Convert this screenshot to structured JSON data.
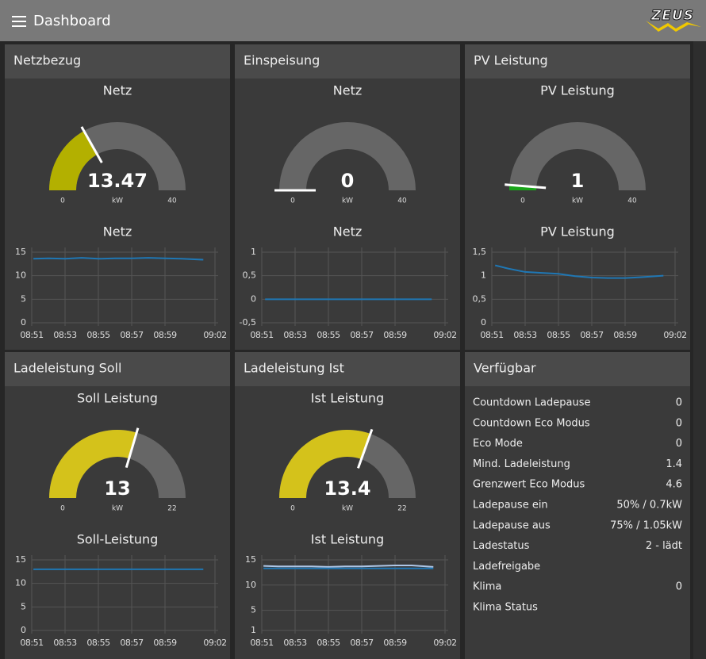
{
  "header": {
    "title": "Dashboard",
    "logo": "ZEUS"
  },
  "panels": [
    {
      "title": "Netzbezug",
      "gauge": {
        "label": "Netz",
        "value": 13.47,
        "unit": "kW",
        "min": 0,
        "max": 40,
        "color": "#b3b000"
      },
      "chart": {
        "label": "Netz",
        "ylim": [
          0,
          15
        ],
        "yticks": [
          0,
          5,
          10,
          15
        ],
        "xlim": [
          531,
          542
        ],
        "xticks": [
          {
            "value": 531,
            "label": "08:51"
          },
          {
            "value": 533,
            "label": "08:53"
          },
          {
            "value": 535,
            "label": "08:55"
          },
          {
            "value": 537,
            "label": "08:57"
          },
          {
            "value": 539,
            "label": "08:59"
          },
          {
            "value": 542,
            "label": "09:02"
          }
        ],
        "series": [
          {
            "color": "#1f77b4",
            "x": [
              531.1,
              532,
              533,
              534,
              535,
              536,
              537,
              538,
              539,
              540,
              541.3
            ],
            "values": [
              13.6,
              13.7,
              13.6,
              13.8,
              13.6,
              13.7,
              13.7,
              13.8,
              13.7,
              13.6,
              13.4
            ]
          }
        ]
      }
    },
    {
      "title": "Einspeisung",
      "gauge": {
        "label": "Netz",
        "value": 0,
        "unit": "kW",
        "min": 0,
        "max": 40,
        "color": "#b3b000"
      },
      "chart": {
        "label": "Netz",
        "ylim": [
          -0.5,
          1
        ],
        "yticks": [
          {
            "value": -0.5,
            "label": "-0,5"
          },
          0,
          {
            "value": 0.5,
            "label": "0,5"
          },
          1
        ],
        "xlim": [
          531,
          542
        ],
        "xticks": [
          {
            "value": 531,
            "label": "08:51"
          },
          {
            "value": 533,
            "label": "08:53"
          },
          {
            "value": 535,
            "label": "08:55"
          },
          {
            "value": 537,
            "label": "08:57"
          },
          {
            "value": 539,
            "label": "08:59"
          },
          {
            "value": 542,
            "label": "09:02"
          }
        ],
        "series": [
          {
            "color": "#1f77b4",
            "x": [
              531.2,
              536,
              541.2
            ],
            "values": [
              0,
              0,
              0
            ]
          }
        ]
      }
    },
    {
      "title": "PV Leistung",
      "gauge": {
        "label": "PV Leistung",
        "value": 1,
        "unit": "kW",
        "min": 0,
        "max": 40,
        "color": "#1aa51a"
      },
      "chart": {
        "label": "PV Leistung",
        "ylim": [
          0,
          1.5
        ],
        "yticks": [
          0,
          {
            "value": 0.5,
            "label": "0,5"
          },
          1,
          {
            "value": 1.5,
            "label": "1,5"
          }
        ],
        "xlim": [
          531,
          542
        ],
        "xticks": [
          {
            "value": 531,
            "label": "08:51"
          },
          {
            "value": 533,
            "label": "08:53"
          },
          {
            "value": 535,
            "label": "08:55"
          },
          {
            "value": 537,
            "label": "08:57"
          },
          {
            "value": 539,
            "label": "08:59"
          },
          {
            "value": 542,
            "label": "09:02"
          }
        ],
        "series": [
          {
            "color": "#1f77b4",
            "x": [
              531.2,
              532,
              533,
              534,
              535,
              536,
              537,
              538,
              539,
              540,
              541.3
            ],
            "values": [
              1.22,
              1.15,
              1.08,
              1.06,
              1.04,
              0.99,
              0.96,
              0.95,
              0.95,
              0.97,
              1.0
            ]
          }
        ]
      }
    },
    {
      "title": "Ladeleistung Soll",
      "gauge": {
        "label": "Soll Leistung",
        "value": 13,
        "unit": "kW",
        "min": 0,
        "max": 22,
        "color": "#d4c21b"
      },
      "chart": {
        "label": "Soll-Leistung",
        "ylim": [
          0,
          15
        ],
        "yticks": [
          0,
          5,
          10,
          15
        ],
        "xlim": [
          531,
          542
        ],
        "xticks": [
          {
            "value": 531,
            "label": "08:51"
          },
          {
            "value": 533,
            "label": "08:53"
          },
          {
            "value": 535,
            "label": "08:55"
          },
          {
            "value": 537,
            "label": "08:57"
          },
          {
            "value": 539,
            "label": "08:59"
          },
          {
            "value": 542,
            "label": "09:02"
          }
        ],
        "series": [
          {
            "color": "#1f77b4",
            "x": [
              531.1,
              541.3
            ],
            "values": [
              13,
              13
            ]
          }
        ]
      }
    },
    {
      "title": "Ladeleistung Ist",
      "gauge": {
        "label": "Ist Leistung",
        "value": 13.4,
        "unit": "kW",
        "min": 0,
        "max": 22,
        "color": "#d4c21b"
      },
      "chart": {
        "label": "Ist Leistung",
        "ylim": [
          1,
          15
        ],
        "yticks": [
          1,
          5,
          10,
          15
        ],
        "xlim": [
          531,
          542
        ],
        "xticks": [
          {
            "value": 531,
            "label": "08:51"
          },
          {
            "value": 533,
            "label": "08:53"
          },
          {
            "value": 535,
            "label": "08:55"
          },
          {
            "value": 537,
            "label": "08:57"
          },
          {
            "value": 539,
            "label": "08:59"
          },
          {
            "value": 542,
            "label": "09:02"
          }
        ],
        "series": [
          {
            "color": "#aec7e8",
            "x": [
              531.1,
              532,
              533,
              534,
              535,
              536,
              537,
              538,
              539,
              540,
              541.3
            ],
            "values": [
              13.8,
              13.7,
              13.7,
              13.7,
              13.6,
              13.7,
              13.7,
              13.8,
              13.9,
              13.9,
              13.6
            ]
          },
          {
            "color": "#1f77b4",
            "x": [
              531.1,
              541.3
            ],
            "values": [
              13.3,
              13.3
            ]
          }
        ]
      }
    }
  ],
  "table": {
    "title": "Verfügbar",
    "rows": [
      {
        "label": "Countdown Ladepause",
        "value": 0
      },
      {
        "label": "Countdown Eco Modus",
        "value": 0
      },
      {
        "label": "Eco Mode",
        "value": 0
      },
      {
        "label": "Mind. Ladeleistung",
        "value": 1.4
      },
      {
        "label": "Grenzwert Eco Modus",
        "value": 4.6
      },
      {
        "label": "Ladepause ein",
        "value": "50% / 0.7kW"
      },
      {
        "label": "Ladepause aus",
        "value": "75% / 1.05kW"
      },
      {
        "label": "Ladestatus",
        "value": "2 - lädt"
      },
      {
        "label": "Ladefreigabe"
      },
      {
        "label": "Klima",
        "value": 0
      },
      {
        "label": "Klima Status"
      }
    ]
  }
}
